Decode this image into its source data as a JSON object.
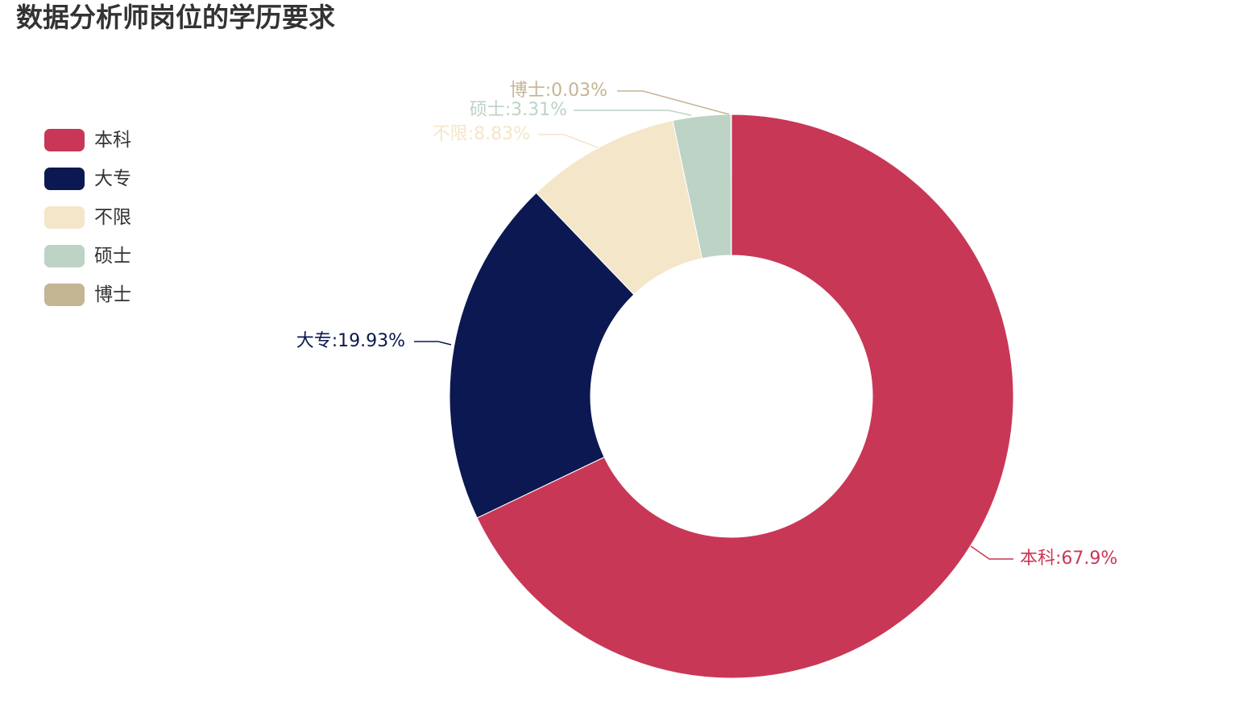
{
  "title": "数据分析师岗位的学历要求",
  "chart_data": {
    "type": "pie",
    "donut": true,
    "title": "数据分析师岗位的学历要求",
    "legend_position": "left",
    "slices": [
      {
        "name": "本科",
        "value": 67.9,
        "label": "本科:67.9%",
        "color": "#c93756"
      },
      {
        "name": "大专",
        "value": 19.93,
        "label": "大专:19.93%",
        "color": "#0b1851"
      },
      {
        "name": "不限",
        "value": 8.83,
        "label": "不限:8.83%",
        "color": "#f4e6c9"
      },
      {
        "name": "硕士",
        "value": 3.31,
        "label": "硕士:3.31%",
        "color": "#bcd3c5"
      },
      {
        "name": "博士",
        "value": 0.03,
        "label": "博士:0.03%",
        "color": "#c4b593"
      }
    ]
  }
}
